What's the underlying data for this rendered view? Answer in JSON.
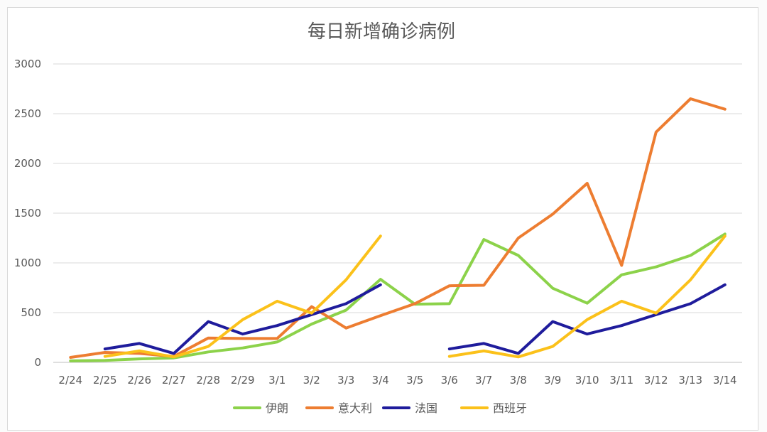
{
  "chart_data": {
    "type": "line",
    "title": "每日新增确诊病例",
    "categories": [
      "2/24",
      "2/25",
      "2/26",
      "2/27",
      "2/28",
      "2/29",
      "3/1",
      "3/2",
      "3/3",
      "3/4",
      "3/5",
      "3/6",
      "3/7",
      "3/8",
      "3/9",
      "3/10",
      "3/11",
      "3/12",
      "3/13",
      "3/14"
    ],
    "ylim": [
      0,
      3000
    ],
    "yticks": [
      0,
      500,
      1000,
      1500,
      2000,
      2500,
      3000
    ],
    "grid": true,
    "legend_position": "bottom",
    "series": [
      {
        "name": "伊朗",
        "color": "#8cd24a",
        "values": [
          15,
          20,
          35,
          45,
          105,
          145,
          205,
          385,
          525,
          835,
          585,
          590,
          1235,
          1075,
          745,
          595,
          880,
          960,
          1075,
          1290
        ]
      },
      {
        "name": "意大利",
        "color": "#ed7d31",
        "values": [
          50,
          100,
          90,
          60,
          245,
          240,
          240,
          560,
          345,
          470,
          590,
          770,
          775,
          1250,
          1490,
          1800,
          975,
          2315,
          2650,
          2545
        ]
      },
      {
        "name": "法国",
        "color": "#1f1c9c",
        "values": [
          null,
          135,
          190,
          90,
          410,
          285,
          370,
          480,
          590,
          780,
          null,
          135,
          190,
          90,
          410,
          285,
          370,
          480,
          590,
          780
        ]
      },
      {
        "name": "西班牙",
        "color": "#fbc11a",
        "values": [
          null,
          60,
          115,
          55,
          160,
          430,
          615,
          495,
          830,
          1270,
          null,
          60,
          115,
          55,
          160,
          430,
          615,
          495,
          830,
          1270
        ]
      }
    ]
  }
}
